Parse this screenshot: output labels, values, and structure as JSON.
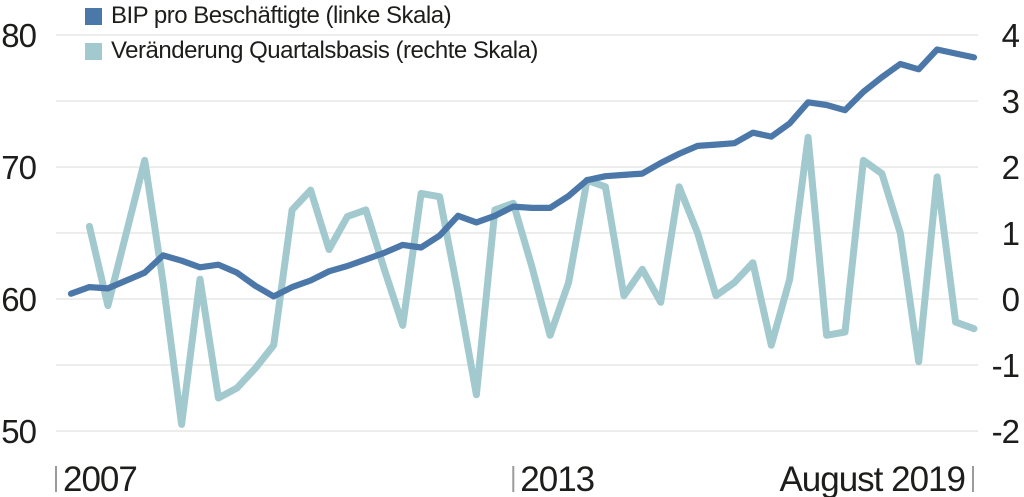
{
  "chart_data": {
    "type": "line",
    "title": "",
    "x_axis": {
      "unit": "quarterly",
      "start": "2007-Q1",
      "end": "2019-Q2",
      "num_points": 50,
      "tick_labels": [
        {
          "label": "2007",
          "quarter_index": 0,
          "label_side": "right"
        },
        {
          "label": "2013",
          "quarter_index": 24,
          "label_side": "right"
        },
        {
          "label": "August 2019",
          "quarter_index": 49,
          "label_side": "left"
        }
      ]
    },
    "left_axis": {
      "range": [
        50,
        80
      ],
      "tick_labels": [
        80,
        70,
        60,
        50
      ],
      "gridline_values": [
        50,
        55,
        60,
        65,
        70,
        75,
        80
      ]
    },
    "right_axis": {
      "range": [
        -2,
        4
      ],
      "tick_labels": [
        4,
        3,
        2,
        1,
        0,
        -1,
        -2
      ]
    },
    "grid": true,
    "legend_position": "top-left",
    "series": [
      {
        "name": "BIP pro Beschäftigte",
        "legend_label": "BIP pro Beschäftigte (linke Skala)",
        "axis": "left",
        "color": "#4b78a8",
        "stroke_width": 6.2,
        "values": [
          60.4,
          60.9,
          60.8,
          61.4,
          62.0,
          63.3,
          62.9,
          62.4,
          62.6,
          62.0,
          61.0,
          60.2,
          60.9,
          61.4,
          62.1,
          62.5,
          63.0,
          63.5,
          64.1,
          63.9,
          64.8,
          66.3,
          65.8,
          66.3,
          67.0,
          66.9,
          66.9,
          67.8,
          69.0,
          69.3,
          69.4,
          69.5,
          70.3,
          71.0,
          71.6,
          71.7,
          71.8,
          72.6,
          72.3,
          73.3,
          74.9,
          74.7,
          74.3,
          75.7,
          76.8,
          77.8,
          77.4,
          78.9,
          78.6,
          78.3
        ]
      },
      {
        "name": "Veränderung Quartalsbasis",
        "legend_label": "Veränderung Quartalsbasis (rechte Skala)",
        "axis": "right",
        "color": "#a2c9ce",
        "stroke_width": 7,
        "values": [
          null,
          1.1,
          -0.1,
          1.0,
          2.1,
          0.25,
          -1.9,
          0.3,
          -1.5,
          -1.35,
          -1.05,
          -0.7,
          1.35,
          1.65,
          0.75,
          1.25,
          1.35,
          0.45,
          -0.4,
          1.6,
          1.55,
          0.1,
          -1.45,
          1.35,
          1.45,
          0.5,
          -0.55,
          0.25,
          1.8,
          1.7,
          0.05,
          0.45,
          -0.05,
          1.7,
          1.0,
          0.05,
          0.25,
          0.55,
          -0.7,
          0.3,
          2.45,
          -0.55,
          -0.5,
          2.1,
          1.9,
          1.0,
          -0.95,
          1.85,
          -0.35,
          -0.45
        ]
      }
    ],
    "colors": {
      "gridline": "#e7e7e5",
      "tick_mark": "#9b9b9b",
      "text": "#1d1d1b",
      "background": "#ffffff"
    }
  }
}
